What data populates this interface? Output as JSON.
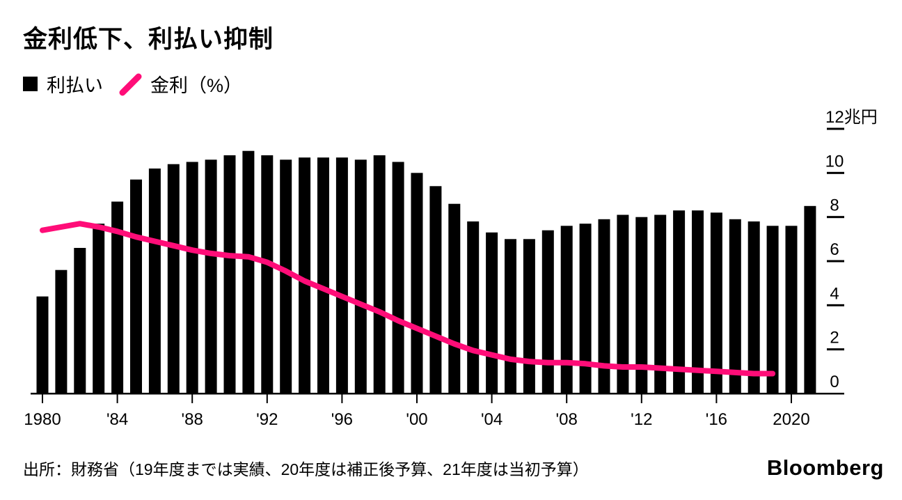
{
  "title": "金利低下、利払い抑制",
  "legend": {
    "bar_label": "利払い",
    "line_label": "金利（%）"
  },
  "source": "出所：財務省（19年度までは実績、20年度は補正後予算、21年度は当初予算）",
  "brand": "Bloomberg",
  "colors": {
    "bar": "#000000",
    "line": "#ff0d78",
    "axis": "#000000",
    "background": "#ffffff"
  },
  "chart_data": {
    "type": "bar+line",
    "title": "金利低下、利払い抑制",
    "categories": [
      1980,
      1981,
      1982,
      1983,
      1984,
      1985,
      1986,
      1987,
      1988,
      1989,
      1990,
      1991,
      1992,
      1993,
      1994,
      1995,
      1996,
      1997,
      1998,
      1999,
      2000,
      2001,
      2002,
      2003,
      2004,
      2005,
      2006,
      2007,
      2008,
      2009,
      2010,
      2011,
      2012,
      2013,
      2014,
      2015,
      2016,
      2017,
      2018,
      2019,
      2020,
      2021
    ],
    "series": [
      {
        "name": "利払い",
        "type": "bar",
        "unit": "兆円",
        "values": [
          4.4,
          5.6,
          6.6,
          7.7,
          8.7,
          9.7,
          10.2,
          10.4,
          10.5,
          10.6,
          10.8,
          11.0,
          10.8,
          10.6,
          10.7,
          10.7,
          10.7,
          10.6,
          10.8,
          10.5,
          10.0,
          9.4,
          8.6,
          7.8,
          7.3,
          7.0,
          7.0,
          7.4,
          7.6,
          7.7,
          7.9,
          8.1,
          8.0,
          8.1,
          8.3,
          8.3,
          8.2,
          7.9,
          7.8,
          7.6,
          7.6,
          8.5
        ]
      },
      {
        "name": "金利（%）",
        "type": "line",
        "unit": "%",
        "start_year": 1980,
        "values": [
          7.4,
          7.55,
          7.7,
          7.55,
          7.35,
          7.1,
          6.9,
          6.7,
          6.5,
          6.35,
          6.25,
          6.2,
          5.95,
          5.55,
          5.1,
          4.75,
          4.4,
          4.05,
          3.7,
          3.3,
          2.95,
          2.6,
          2.25,
          1.95,
          1.75,
          1.55,
          1.45,
          1.4,
          1.4,
          1.35,
          1.25,
          1.2,
          1.2,
          1.15,
          1.1,
          1.05,
          1.0,
          0.95,
          0.9,
          0.9
        ]
      }
    ],
    "ylim": [
      0,
      12
    ],
    "y_ticks": [
      12,
      10,
      8,
      6,
      4,
      2,
      0
    ],
    "y_unit_top_label": "12兆円",
    "x_ticks": [
      {
        "year": 1980,
        "label": "1980"
      },
      {
        "year": 1984,
        "label": "'84"
      },
      {
        "year": 1988,
        "label": "'88"
      },
      {
        "year": 1992,
        "label": "'92"
      },
      {
        "year": 1996,
        "label": "'96"
      },
      {
        "year": 2000,
        "label": "'00"
      },
      {
        "year": 2004,
        "label": "'04"
      },
      {
        "year": 2008,
        "label": "'08"
      },
      {
        "year": 2012,
        "label": "'12"
      },
      {
        "year": 2016,
        "label": "'16"
      },
      {
        "year": 2020,
        "label": "2020"
      }
    ],
    "grid": "right-axis-tick-dashes",
    "legend_position": "top-left",
    "axis_side": "right"
  }
}
